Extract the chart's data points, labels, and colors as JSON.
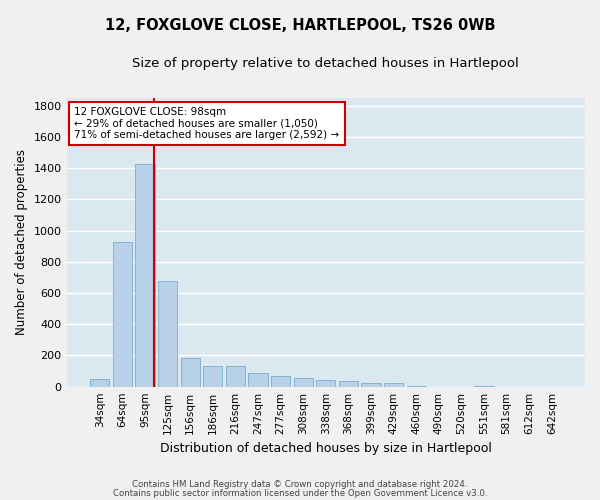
{
  "title": "12, FOXGLOVE CLOSE, HARTLEPOOL, TS26 0WB",
  "subtitle": "Size of property relative to detached houses in Hartlepool",
  "xlabel": "Distribution of detached houses by size in Hartlepool",
  "ylabel": "Number of detached properties",
  "bar_color": "#b8d0e8",
  "bar_edge_color": "#7aaed0",
  "background_color": "#dce8f0",
  "grid_color": "#ffffff",
  "categories": [
    "34sqm",
    "64sqm",
    "95sqm",
    "125sqm",
    "156sqm",
    "186sqm",
    "216sqm",
    "247sqm",
    "277sqm",
    "308sqm",
    "338sqm",
    "368sqm",
    "399sqm",
    "429sqm",
    "460sqm",
    "490sqm",
    "520sqm",
    "551sqm",
    "581sqm",
    "612sqm",
    "642sqm"
  ],
  "values": [
    50,
    930,
    1430,
    680,
    185,
    135,
    135,
    90,
    70,
    55,
    40,
    35,
    25,
    25,
    5,
    0,
    0,
    5,
    0,
    0,
    0
  ],
  "ylim": [
    0,
    1850
  ],
  "yticks": [
    0,
    200,
    400,
    600,
    800,
    1000,
    1200,
    1400,
    1600,
    1800
  ],
  "property_line_color": "#cc0000",
  "property_line_x": 2.42,
  "annotation_label": "12 FOXGLOVE CLOSE: 98sqm",
  "annotation_line1": "← 29% of detached houses are smaller (1,050)",
  "annotation_line2": "71% of semi-detached houses are larger (2,592) →",
  "annotation_box_color": "#ffffff",
  "annotation_box_edge": "#cc0000",
  "footer1": "Contains HM Land Registry data © Crown copyright and database right 2024.",
  "footer2": "Contains public sector information licensed under the Open Government Licence v3.0."
}
